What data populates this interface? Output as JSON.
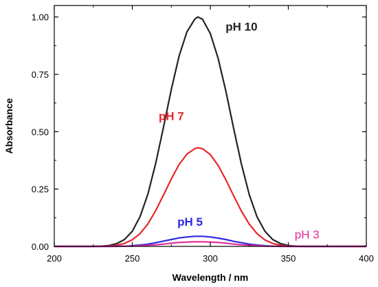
{
  "chart_data": {
    "type": "line",
    "xlabel": "Wavelength / nm",
    "ylabel": "Absorbance",
    "xlim": [
      200,
      400
    ],
    "ylim": [
      0,
      1.05
    ],
    "xticks": [
      200,
      250,
      300,
      350,
      400
    ],
    "xtick_labels": [
      "200",
      "250",
      "300",
      "350",
      "400"
    ],
    "yticks": [
      0,
      0.25,
      0.5,
      0.75,
      1.0
    ],
    "ytick_labels": [
      "0.00",
      "0.25",
      "0.50",
      "0.75",
      "1.00"
    ],
    "grid": false,
    "legend": "none",
    "x": [
      200,
      205,
      210,
      215,
      220,
      225,
      230,
      235,
      240,
      245,
      250,
      255,
      260,
      265,
      270,
      275,
      280,
      285,
      290,
      292,
      295,
      300,
      305,
      310,
      315,
      320,
      325,
      330,
      335,
      340,
      345,
      350,
      355,
      360,
      365,
      370,
      375,
      380,
      385,
      390,
      395,
      400
    ],
    "series": [
      {
        "name": "pH 10",
        "color": "#222222",
        "label_weight": "bold",
        "values": [
          0.0,
          0.0,
          0.0,
          0.0,
          0.0,
          0.0,
          0.001,
          0.004,
          0.012,
          0.03,
          0.066,
          0.13,
          0.228,
          0.362,
          0.52,
          0.684,
          0.83,
          0.935,
          0.99,
          1.0,
          0.99,
          0.928,
          0.82,
          0.676,
          0.513,
          0.357,
          0.225,
          0.128,
          0.066,
          0.03,
          0.012,
          0.004,
          0.001,
          0.0,
          0.0,
          0.0,
          0.0,
          0.0,
          0.0,
          0.0,
          0.0,
          0.0
        ]
      },
      {
        "name": "pH 7",
        "color": "#e8262a",
        "label_weight": "bold",
        "values": [
          0.0,
          0.0,
          0.0,
          0.0,
          0.0,
          0.0,
          0.0,
          0.002,
          0.005,
          0.013,
          0.029,
          0.056,
          0.098,
          0.156,
          0.224,
          0.294,
          0.357,
          0.402,
          0.426,
          0.43,
          0.426,
          0.4,
          0.353,
          0.29,
          0.22,
          0.153,
          0.097,
          0.055,
          0.028,
          0.013,
          0.005,
          0.002,
          0.0,
          0.0,
          0.0,
          0.0,
          0.0,
          0.0,
          0.0,
          0.0,
          0.0,
          0.0
        ]
      },
      {
        "name": "pH 5",
        "color": "#2a2ae0",
        "label_weight": "bold",
        "values": [
          0.0,
          0.0,
          0.0,
          0.0,
          0.0,
          0.0,
          0.0,
          0.0,
          0.001,
          0.001,
          0.003,
          0.006,
          0.01,
          0.016,
          0.023,
          0.03,
          0.037,
          0.041,
          0.044,
          0.044,
          0.044,
          0.041,
          0.036,
          0.03,
          0.022,
          0.016,
          0.01,
          0.006,
          0.003,
          0.001,
          0.001,
          0.0,
          0.0,
          0.0,
          0.0,
          0.0,
          0.0,
          0.0,
          0.0,
          0.0,
          0.0,
          0.0
        ]
      },
      {
        "name": "pH 3",
        "color": "#e0289a",
        "label_weight": "normal",
        "values": [
          0.0,
          0.0,
          0.0,
          0.0,
          0.0,
          0.0,
          0.0,
          0.0,
          0.0,
          0.001,
          0.001,
          0.003,
          0.005,
          0.007,
          0.01,
          0.014,
          0.017,
          0.019,
          0.02,
          0.02,
          0.02,
          0.019,
          0.017,
          0.014,
          0.01,
          0.007,
          0.005,
          0.003,
          0.001,
          0.001,
          0.0,
          0.0,
          0.0,
          0.0,
          0.0,
          0.0,
          0.0,
          0.0,
          0.0,
          0.0,
          0.0,
          0.0
        ]
      }
    ],
    "annotations": [
      {
        "series": "pH 10",
        "text": "pH 10",
        "x": 320,
        "y": 0.94
      },
      {
        "series": "pH 7",
        "text": "pH 7",
        "x": 275,
        "y": 0.55
      },
      {
        "series": "pH 5",
        "text": "pH 5",
        "x": 287,
        "y": 0.09
      },
      {
        "series": "pH 3",
        "text": "pH 3",
        "x": 362,
        "y": 0.035
      }
    ]
  }
}
